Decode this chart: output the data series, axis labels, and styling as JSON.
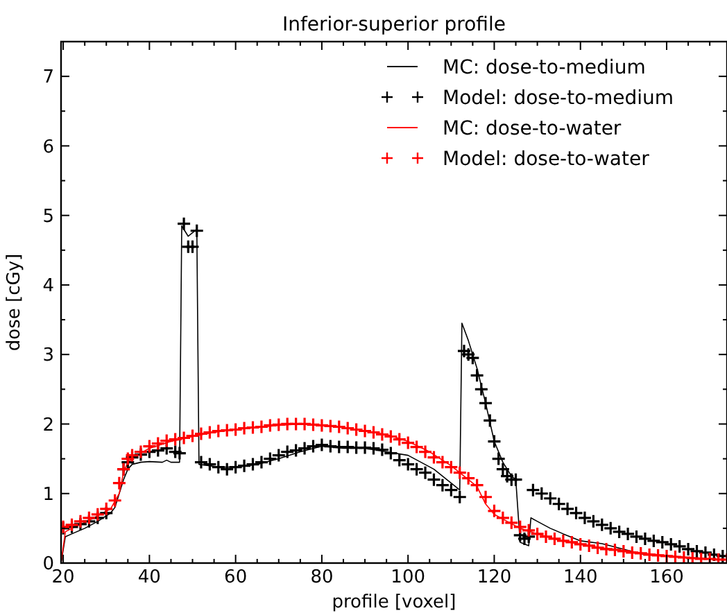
{
  "chart_data": {
    "type": "line",
    "title": "Inferior-superior profile",
    "xlabel": "profile [voxel]",
    "ylabel": "dose [cGy]",
    "xlim": [
      19.5,
      174
    ],
    "ylim": [
      0,
      7.5
    ],
    "xticks": [
      20,
      {
        "value": 25,
        "label": null
      },
      {
        "value": 30,
        "label": null
      },
      {
        "value": 35,
        "label": null
      },
      40,
      {
        "value": 45,
        "label": null
      },
      {
        "value": 50,
        "label": null
      },
      {
        "value": 55,
        "label": null
      },
      60,
      {
        "value": 65,
        "label": null
      },
      {
        "value": 70,
        "label": null
      },
      {
        "value": 75,
        "label": null
      },
      80,
      {
        "value": 85,
        "label": null
      },
      {
        "value": 90,
        "label": null
      },
      {
        "value": 95,
        "label": null
      },
      100,
      {
        "value": 105,
        "label": null
      },
      {
        "value": 110,
        "label": null
      },
      {
        "value": 115,
        "label": null
      },
      120,
      {
        "value": 125,
        "label": null
      },
      {
        "value": 130,
        "label": null
      },
      {
        "value": 135,
        "label": null
      },
      140,
      {
        "value": 145,
        "label": null
      },
      {
        "value": 150,
        "label": null
      },
      {
        "value": 155,
        "label": null
      },
      160,
      {
        "value": 165,
        "label": null
      },
      {
        "value": 170,
        "label": null
      }
    ],
    "yticks": [
      0,
      {
        "value": 0.5,
        "label": null
      },
      1,
      {
        "value": 1.5,
        "label": null
      },
      2,
      {
        "value": 2.5,
        "label": null
      },
      3,
      {
        "value": 3.5,
        "label": null
      },
      4,
      {
        "value": 4.5,
        "label": null
      },
      5,
      {
        "value": 5.5,
        "label": null
      },
      6,
      {
        "value": 6.5,
        "label": null
      },
      7
    ],
    "grid": false,
    "legend": "top right",
    "series": [
      {
        "name": "MC: dose-to-medium",
        "color": "#000000",
        "marker": "none",
        "line_style": "solid",
        "x": [
          19.5,
          20.5,
          22,
          25,
          28,
          31,
          32,
          33,
          34,
          35,
          36,
          38,
          40,
          43,
          44,
          45,
          47,
          47.5,
          49,
          50,
          51,
          51.5,
          54,
          56,
          60,
          65,
          70,
          75,
          80,
          85,
          90,
          95,
          100,
          103,
          106,
          109,
          112,
          112.5,
          114,
          116,
          118,
          120,
          122,
          124,
          125,
          126,
          128,
          128.5,
          130,
          133,
          136,
          140,
          145,
          150,
          155,
          160,
          165,
          170,
          174
        ],
        "values": [
          0,
          0.38,
          0.42,
          0.5,
          0.6,
          0.72,
          0.8,
          1.0,
          1.2,
          1.35,
          1.42,
          1.45,
          1.46,
          1.45,
          1.48,
          1.45,
          1.45,
          4.85,
          4.7,
          4.75,
          4.8,
          1.42,
          1.4,
          1.38,
          1.38,
          1.42,
          1.5,
          1.6,
          1.68,
          1.65,
          1.65,
          1.6,
          1.55,
          1.45,
          1.35,
          1.2,
          1.05,
          3.45,
          3.2,
          2.8,
          2.3,
          1.75,
          1.45,
          1.25,
          1.2,
          0.3,
          0.25,
          0.65,
          0.6,
          0.5,
          0.42,
          0.32,
          0.28,
          0.2,
          0.12,
          0.1,
          0.08,
          0.06,
          0.05
        ]
      },
      {
        "name": "Model: dose-to-medium",
        "type": "scatter",
        "color": "#000000",
        "marker": "cross",
        "x": [
          20,
          22,
          24,
          26,
          28,
          30,
          34,
          35,
          36,
          38,
          40,
          42,
          44,
          46,
          47,
          48,
          49,
          50,
          51,
          52,
          54,
          56,
          58,
          60,
          62,
          64,
          66,
          68,
          70,
          72,
          74,
          76,
          78,
          80,
          82,
          84,
          86,
          88,
          90,
          92,
          94,
          96,
          98,
          100,
          102,
          104,
          106,
          108,
          110,
          112,
          113,
          114,
          115,
          116,
          117,
          118,
          119,
          120,
          121,
          122,
          123,
          124,
          125,
          126,
          127,
          128,
          129,
          131,
          133,
          135,
          137,
          139,
          141,
          143,
          145,
          147,
          149,
          151,
          153,
          155,
          157,
          159,
          161,
          163,
          165,
          167,
          169,
          171,
          173
        ],
        "values": [
          0.5,
          0.52,
          0.56,
          0.6,
          0.65,
          0.72,
          1.35,
          1.45,
          1.52,
          1.56,
          1.6,
          1.62,
          1.65,
          1.6,
          1.58,
          4.88,
          4.55,
          4.55,
          4.78,
          1.45,
          1.42,
          1.38,
          1.35,
          1.38,
          1.4,
          1.42,
          1.45,
          1.5,
          1.55,
          1.6,
          1.62,
          1.65,
          1.68,
          1.7,
          1.68,
          1.67,
          1.67,
          1.66,
          1.66,
          1.65,
          1.63,
          1.58,
          1.48,
          1.42,
          1.35,
          1.3,
          1.2,
          1.12,
          1.05,
          0.95,
          3.05,
          3.0,
          2.95,
          2.7,
          2.5,
          2.3,
          2.05,
          1.75,
          1.5,
          1.35,
          1.25,
          1.2,
          1.2,
          0.4,
          0.35,
          0.38,
          1.05,
          1.0,
          0.93,
          0.85,
          0.78,
          0.72,
          0.65,
          0.6,
          0.55,
          0.5,
          0.45,
          0.42,
          0.38,
          0.35,
          0.32,
          0.3,
          0.27,
          0.24,
          0.2,
          0.17,
          0.15,
          0.12,
          0.1
        ]
      },
      {
        "name": "MC: dose-to-water",
        "color": "#ff0000",
        "marker": "none",
        "line_style": "solid",
        "x": [
          19.5,
          20.5,
          22,
          25,
          28,
          31,
          33,
          34,
          35,
          37,
          40,
          45,
          50,
          55,
          60,
          65,
          70,
          75,
          80,
          85,
          90,
          95,
          100,
          105,
          110,
          113,
          116,
          118,
          120,
          123,
          126,
          130,
          135,
          140,
          145,
          150,
          155,
          160,
          165,
          170,
          174
        ],
        "values": [
          0,
          0.45,
          0.5,
          0.58,
          0.68,
          0.78,
          1.0,
          1.3,
          1.45,
          1.55,
          1.65,
          1.75,
          1.82,
          1.88,
          1.92,
          1.95,
          1.98,
          2.0,
          1.98,
          1.95,
          1.9,
          1.85,
          1.75,
          1.6,
          1.4,
          1.25,
          1.1,
          0.85,
          0.7,
          0.6,
          0.5,
          0.42,
          0.33,
          0.27,
          0.22,
          0.18,
          0.14,
          0.11,
          0.08,
          0.06,
          0.05
        ]
      },
      {
        "name": "Model: dose-to-water",
        "type": "scatter",
        "color": "#ff0000",
        "marker": "cross",
        "x": [
          20,
          22,
          24,
          26,
          28,
          30,
          32,
          33,
          34,
          35,
          36,
          38,
          40,
          42,
          44,
          46,
          48,
          50,
          52,
          54,
          56,
          58,
          60,
          62,
          64,
          66,
          68,
          70,
          72,
          74,
          76,
          78,
          80,
          82,
          84,
          86,
          88,
          90,
          92,
          94,
          96,
          98,
          100,
          102,
          104,
          106,
          108,
          110,
          112,
          114,
          116,
          118,
          120,
          122,
          124,
          126,
          128,
          130,
          132,
          134,
          136,
          138,
          140,
          142,
          144,
          146,
          148,
          150,
          152,
          154,
          156,
          158,
          160,
          162,
          164,
          166,
          168,
          170,
          172,
          174
        ],
        "values": [
          0.52,
          0.55,
          0.6,
          0.65,
          0.7,
          0.78,
          0.9,
          1.15,
          1.35,
          1.5,
          1.55,
          1.6,
          1.68,
          1.72,
          1.76,
          1.78,
          1.8,
          1.83,
          1.86,
          1.88,
          1.9,
          1.91,
          1.92,
          1.94,
          1.95,
          1.96,
          1.98,
          1.99,
          2.0,
          2.0,
          2.0,
          1.99,
          1.98,
          1.97,
          1.96,
          1.94,
          1.92,
          1.9,
          1.88,
          1.85,
          1.82,
          1.78,
          1.73,
          1.67,
          1.6,
          1.52,
          1.45,
          1.38,
          1.3,
          1.22,
          1.12,
          0.95,
          0.75,
          0.65,
          0.58,
          0.52,
          0.47,
          0.42,
          0.38,
          0.35,
          0.32,
          0.3,
          0.27,
          0.25,
          0.22,
          0.2,
          0.19,
          0.17,
          0.15,
          0.14,
          0.12,
          0.11,
          0.1,
          0.09,
          0.08,
          0.07,
          0.06,
          0.06,
          0.05,
          0.05
        ]
      }
    ]
  }
}
